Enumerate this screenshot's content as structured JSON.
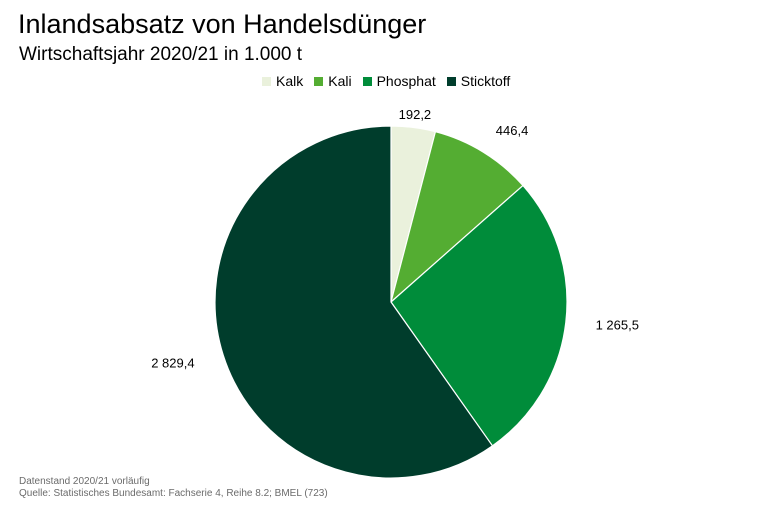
{
  "title": "Inlandsabsatz von Handelsdünger",
  "subtitle": "Wirtschaftsjahr 2020/21 in 1.000 t",
  "chart_data": {
    "type": "pie",
    "categories": [
      "Kalk",
      "Kali",
      "Phosphat",
      "Sticktoff"
    ],
    "values": [
      192.2,
      446.4,
      1265.5,
      2829.4
    ],
    "labels": [
      "192,2",
      "446,4",
      "1 265,5",
      "2 829,4"
    ],
    "colors": [
      "#eaf1dc",
      "#54ad32",
      "#008c3a",
      "#003d2c"
    ],
    "start_angle": "top",
    "direction": "clockwise",
    "legend_position": "top"
  },
  "footer": {
    "line1": "Datenstand 2020/21 vorläufig",
    "line2": "Quelle: Statistisches Bundesamt: Fachserie 4, Reihe 8.2; BMEL (723)"
  }
}
